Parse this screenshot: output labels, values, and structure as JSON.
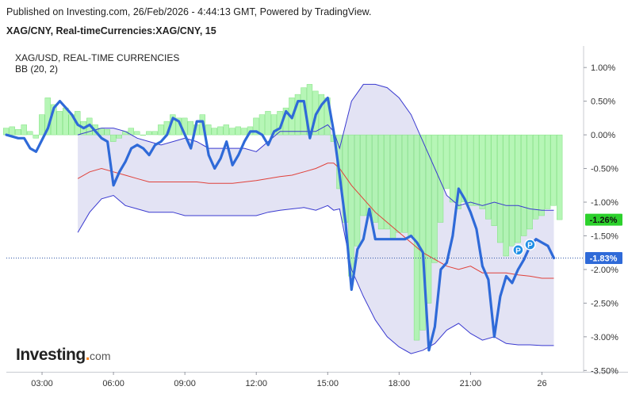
{
  "header": {
    "published_line": "Published on Investing.com, 26/Feb/2026 - 4:44:13 GMT, Powered by TradingView.",
    "symbol_line": "XAG/CNY, Real-timeCurrencies:XAG/CNY, 15"
  },
  "legend": {
    "compare_symbol": "XAG/USD, REAL-TIME CURRENCIES",
    "indicator": "BB (20, 2)"
  },
  "logo": {
    "name": "Investing",
    "suffix": "com"
  },
  "colors": {
    "price_line": "#2f6ad8",
    "bb_band": "#3a3ad0",
    "bb_basis": "#e0413a",
    "bb_fill": "#e3e3f4",
    "histogram": "#a9f5a9",
    "histogram_edge": "#6fdc6f",
    "current_line": "#2f56a6",
    "badge_green": "#2cd12c",
    "badge_blue": "#2f6ad8",
    "marker": "#1f8fe6"
  },
  "chart_data": {
    "type": "line",
    "y_unit": "%",
    "ylim": [
      -3.5,
      1.25
    ],
    "y_ticks": [
      1.0,
      0.5,
      0.0,
      -0.5,
      -1.0,
      -1.5,
      -2.0,
      -2.5,
      -3.0,
      -3.5
    ],
    "y_tick_labels": [
      "1.00%",
      "0.50%",
      "0.00%",
      "-0.50%",
      "-1.00%",
      "-1.50%",
      "-2.00%",
      "-2.50%",
      "-3.00%",
      "-3.50%"
    ],
    "xlim": [
      1.5,
      25.75
    ],
    "x_ticks": [
      3,
      6,
      9,
      12,
      15,
      18,
      21,
      24
    ],
    "x_tick_labels": [
      "03:00",
      "06:00",
      "09:00",
      "12:00",
      "15:00",
      "18:00",
      "21:00",
      "26"
    ],
    "series": [
      {
        "name": "XAG/CNY",
        "x": [
          1.5,
          2.0,
          2.25,
          2.5,
          2.75,
          3.25,
          3.5,
          3.75,
          4.0,
          4.25,
          4.5,
          4.75,
          5.0,
          5.25,
          5.5,
          5.75,
          6.0,
          6.25,
          6.5,
          6.75,
          7.0,
          7.25,
          7.5,
          7.75,
          8.0,
          8.25,
          8.5,
          8.75,
          9.0,
          9.25,
          9.5,
          9.75,
          10.0,
          10.25,
          10.5,
          10.75,
          11.0,
          11.25,
          11.5,
          11.75,
          12.0,
          12.25,
          12.5,
          12.75,
          13.0,
          13.25,
          13.5,
          13.75,
          14.0,
          14.25,
          14.5,
          14.75,
          15.0,
          15.25,
          15.5,
          15.75,
          16.0,
          16.25,
          16.5,
          16.75,
          17.0,
          17.25,
          17.5,
          17.75,
          18.0,
          18.25,
          18.5,
          18.75,
          19.0,
          19.25,
          19.5,
          19.75,
          20.0,
          20.25,
          20.5,
          20.75,
          21.0,
          21.25,
          21.5,
          21.75,
          22.0,
          22.25,
          22.5,
          22.75,
          23.0,
          23.25,
          23.5,
          23.75,
          24.0,
          24.25,
          24.5
        ],
        "values": [
          0.0,
          -0.05,
          -0.05,
          -0.2,
          -0.25,
          0.1,
          0.4,
          0.5,
          0.4,
          0.3,
          0.15,
          0.1,
          0.15,
          0.05,
          -0.05,
          -0.1,
          -0.75,
          -0.55,
          -0.4,
          -0.2,
          -0.15,
          -0.2,
          -0.3,
          -0.15,
          -0.1,
          0.0,
          0.25,
          0.2,
          0.0,
          -0.2,
          0.2,
          0.2,
          -0.3,
          -0.5,
          -0.35,
          -0.1,
          -0.45,
          -0.3,
          -0.1,
          0.05,
          0.05,
          0.0,
          -0.15,
          0.05,
          0.1,
          0.35,
          0.25,
          0.5,
          0.5,
          -0.05,
          0.3,
          0.45,
          0.55,
          0.05,
          -0.6,
          -1.3,
          -2.3,
          -1.7,
          -1.55,
          -1.1,
          -1.55,
          -1.55,
          -1.55,
          -1.55,
          -1.55,
          -1.55,
          -1.5,
          -1.6,
          -1.75,
          -3.2,
          -2.85,
          -2.0,
          -1.9,
          -1.5,
          -0.8,
          -0.95,
          -1.15,
          -1.4,
          -1.95,
          -2.15,
          -3.0,
          -2.4,
          -2.1,
          -2.2,
          -2.0,
          -1.85,
          -1.65,
          -1.55,
          -1.6,
          -1.65,
          -1.83
        ]
      }
    ],
    "compare_histogram": {
      "name": "XAG/USD, REAL-TIME CURRENCIES",
      "x": [
        1.5,
        1.75,
        2.0,
        2.25,
        2.5,
        2.75,
        3.0,
        3.25,
        3.5,
        3.75,
        4.0,
        4.25,
        4.5,
        4.75,
        5.0,
        5.25,
        5.5,
        5.75,
        6.0,
        6.25,
        6.5,
        6.75,
        7.0,
        7.25,
        7.5,
        7.75,
        8.0,
        8.25,
        8.5,
        8.75,
        9.0,
        9.25,
        9.5,
        9.75,
        10.0,
        10.25,
        10.5,
        10.75,
        11.0,
        11.25,
        11.5,
        11.75,
        12.0,
        12.25,
        12.5,
        12.75,
        13.0,
        13.25,
        13.5,
        13.75,
        14.0,
        14.25,
        14.5,
        14.75,
        15.0,
        15.25,
        15.5,
        15.75,
        16.0,
        16.25,
        16.5,
        16.75,
        17.0,
        17.25,
        17.5,
        17.75,
        18.0,
        18.25,
        18.5,
        18.75,
        19.0,
        19.25,
        19.5,
        19.75,
        20.0,
        20.25,
        20.5,
        20.75,
        21.0,
        21.25,
        21.5,
        21.75,
        22.0,
        22.25,
        22.5,
        22.75,
        23.0,
        23.25,
        23.5,
        23.75,
        24.0,
        24.25,
        24.5,
        24.75
      ],
      "values": [
        0.1,
        0.12,
        0.08,
        0.15,
        0.05,
        -0.05,
        0.3,
        0.55,
        0.45,
        0.35,
        0.4,
        0.3,
        0.35,
        0.2,
        0.25,
        0.15,
        0.1,
        0.08,
        -0.1,
        -0.05,
        0.05,
        0.1,
        0.05,
        0.0,
        0.05,
        0.05,
        0.15,
        0.2,
        0.3,
        0.25,
        0.25,
        0.2,
        0.15,
        0.3,
        0.15,
        0.1,
        0.12,
        0.15,
        0.1,
        0.12,
        0.1,
        0.12,
        0.25,
        0.3,
        0.35,
        0.3,
        0.35,
        0.4,
        0.55,
        0.6,
        0.7,
        0.75,
        0.65,
        0.6,
        0.55,
        -0.1,
        -0.8,
        -1.3,
        -2.1,
        -1.65,
        -1.2,
        -1.2,
        -1.3,
        -1.4,
        -1.4,
        -1.55,
        -1.45,
        -1.45,
        -1.5,
        -3.05,
        -2.9,
        -2.5,
        -1.9,
        -1.3,
        -0.8,
        -1.0,
        -1.1,
        -1.0,
        -1.05,
        -1.05,
        -1.1,
        -1.25,
        -1.35,
        -1.6,
        -1.8,
        -1.65,
        -1.6,
        -1.5,
        -1.4,
        -1.25,
        -1.2,
        -1.1,
        -1.05,
        -1.26
      ]
    },
    "bollinger": {
      "name": "BB (20, 2)",
      "x": [
        4.5,
        5.0,
        5.5,
        6.0,
        6.5,
        7.0,
        7.5,
        8.0,
        8.5,
        9.0,
        9.5,
        10.0,
        10.5,
        11.0,
        11.5,
        12.0,
        12.5,
        13.0,
        13.5,
        14.0,
        14.5,
        15.0,
        15.25,
        15.5,
        16.0,
        16.5,
        17.0,
        17.5,
        18.0,
        18.5,
        19.0,
        19.5,
        20.0,
        20.5,
        21.0,
        21.5,
        22.0,
        22.5,
        23.0,
        23.5,
        24.0,
        24.5
      ],
      "upper": [
        0.0,
        0.05,
        0.1,
        0.1,
        0.05,
        -0.05,
        -0.1,
        -0.15,
        -0.1,
        -0.05,
        -0.1,
        -0.2,
        -0.2,
        -0.2,
        -0.2,
        -0.25,
        -0.1,
        0.05,
        0.05,
        0.05,
        0.05,
        0.15,
        0.05,
        -0.2,
        0.5,
        0.75,
        0.75,
        0.7,
        0.55,
        0.3,
        -0.1,
        -0.5,
        -0.9,
        -1.05,
        -1.0,
        -1.05,
        -1.0,
        -1.05,
        -1.05,
        -1.1,
        -1.12,
        -1.12
      ],
      "basis": [
        -0.65,
        -0.55,
        -0.5,
        -0.55,
        -0.6,
        -0.65,
        -0.7,
        -0.7,
        -0.7,
        -0.7,
        -0.7,
        -0.72,
        -0.72,
        -0.72,
        -0.7,
        -0.68,
        -0.65,
        -0.62,
        -0.6,
        -0.55,
        -0.5,
        -0.42,
        -0.42,
        -0.5,
        -0.75,
        -0.95,
        -1.15,
        -1.3,
        -1.45,
        -1.6,
        -1.75,
        -1.85,
        -1.95,
        -2.0,
        -1.95,
        -2.05,
        -2.05,
        -2.05,
        -2.08,
        -2.1,
        -2.13,
        -2.13
      ],
      "lower": [
        -1.45,
        -1.15,
        -0.95,
        -0.9,
        -1.05,
        -1.1,
        -1.15,
        -1.15,
        -1.15,
        -1.2,
        -1.2,
        -1.2,
        -1.2,
        -1.2,
        -1.2,
        -1.2,
        -1.15,
        -1.12,
        -1.1,
        -1.08,
        -1.12,
        -1.05,
        -1.12,
        -1.1,
        -2.0,
        -2.4,
        -2.75,
        -3.0,
        -3.15,
        -3.25,
        -3.2,
        -3.1,
        -2.9,
        -2.8,
        -2.95,
        -3.05,
        -3.0,
        -3.1,
        -3.12,
        -3.12,
        -3.13,
        -3.13
      ]
    },
    "markers": [
      {
        "label": "P",
        "x": 23.0,
        "y": -1.71
      },
      {
        "label": "P",
        "x": 23.5,
        "y": -1.63
      }
    ],
    "last_value_badges": [
      {
        "series": "XAG/USD, REAL-TIME CURRENCIES",
        "value": -1.26,
        "label": "-1.26%"
      },
      {
        "series": "XAG/CNY",
        "value": -1.83,
        "label": "-1.83%"
      }
    ],
    "grid": false,
    "legend_position": "top-left"
  }
}
